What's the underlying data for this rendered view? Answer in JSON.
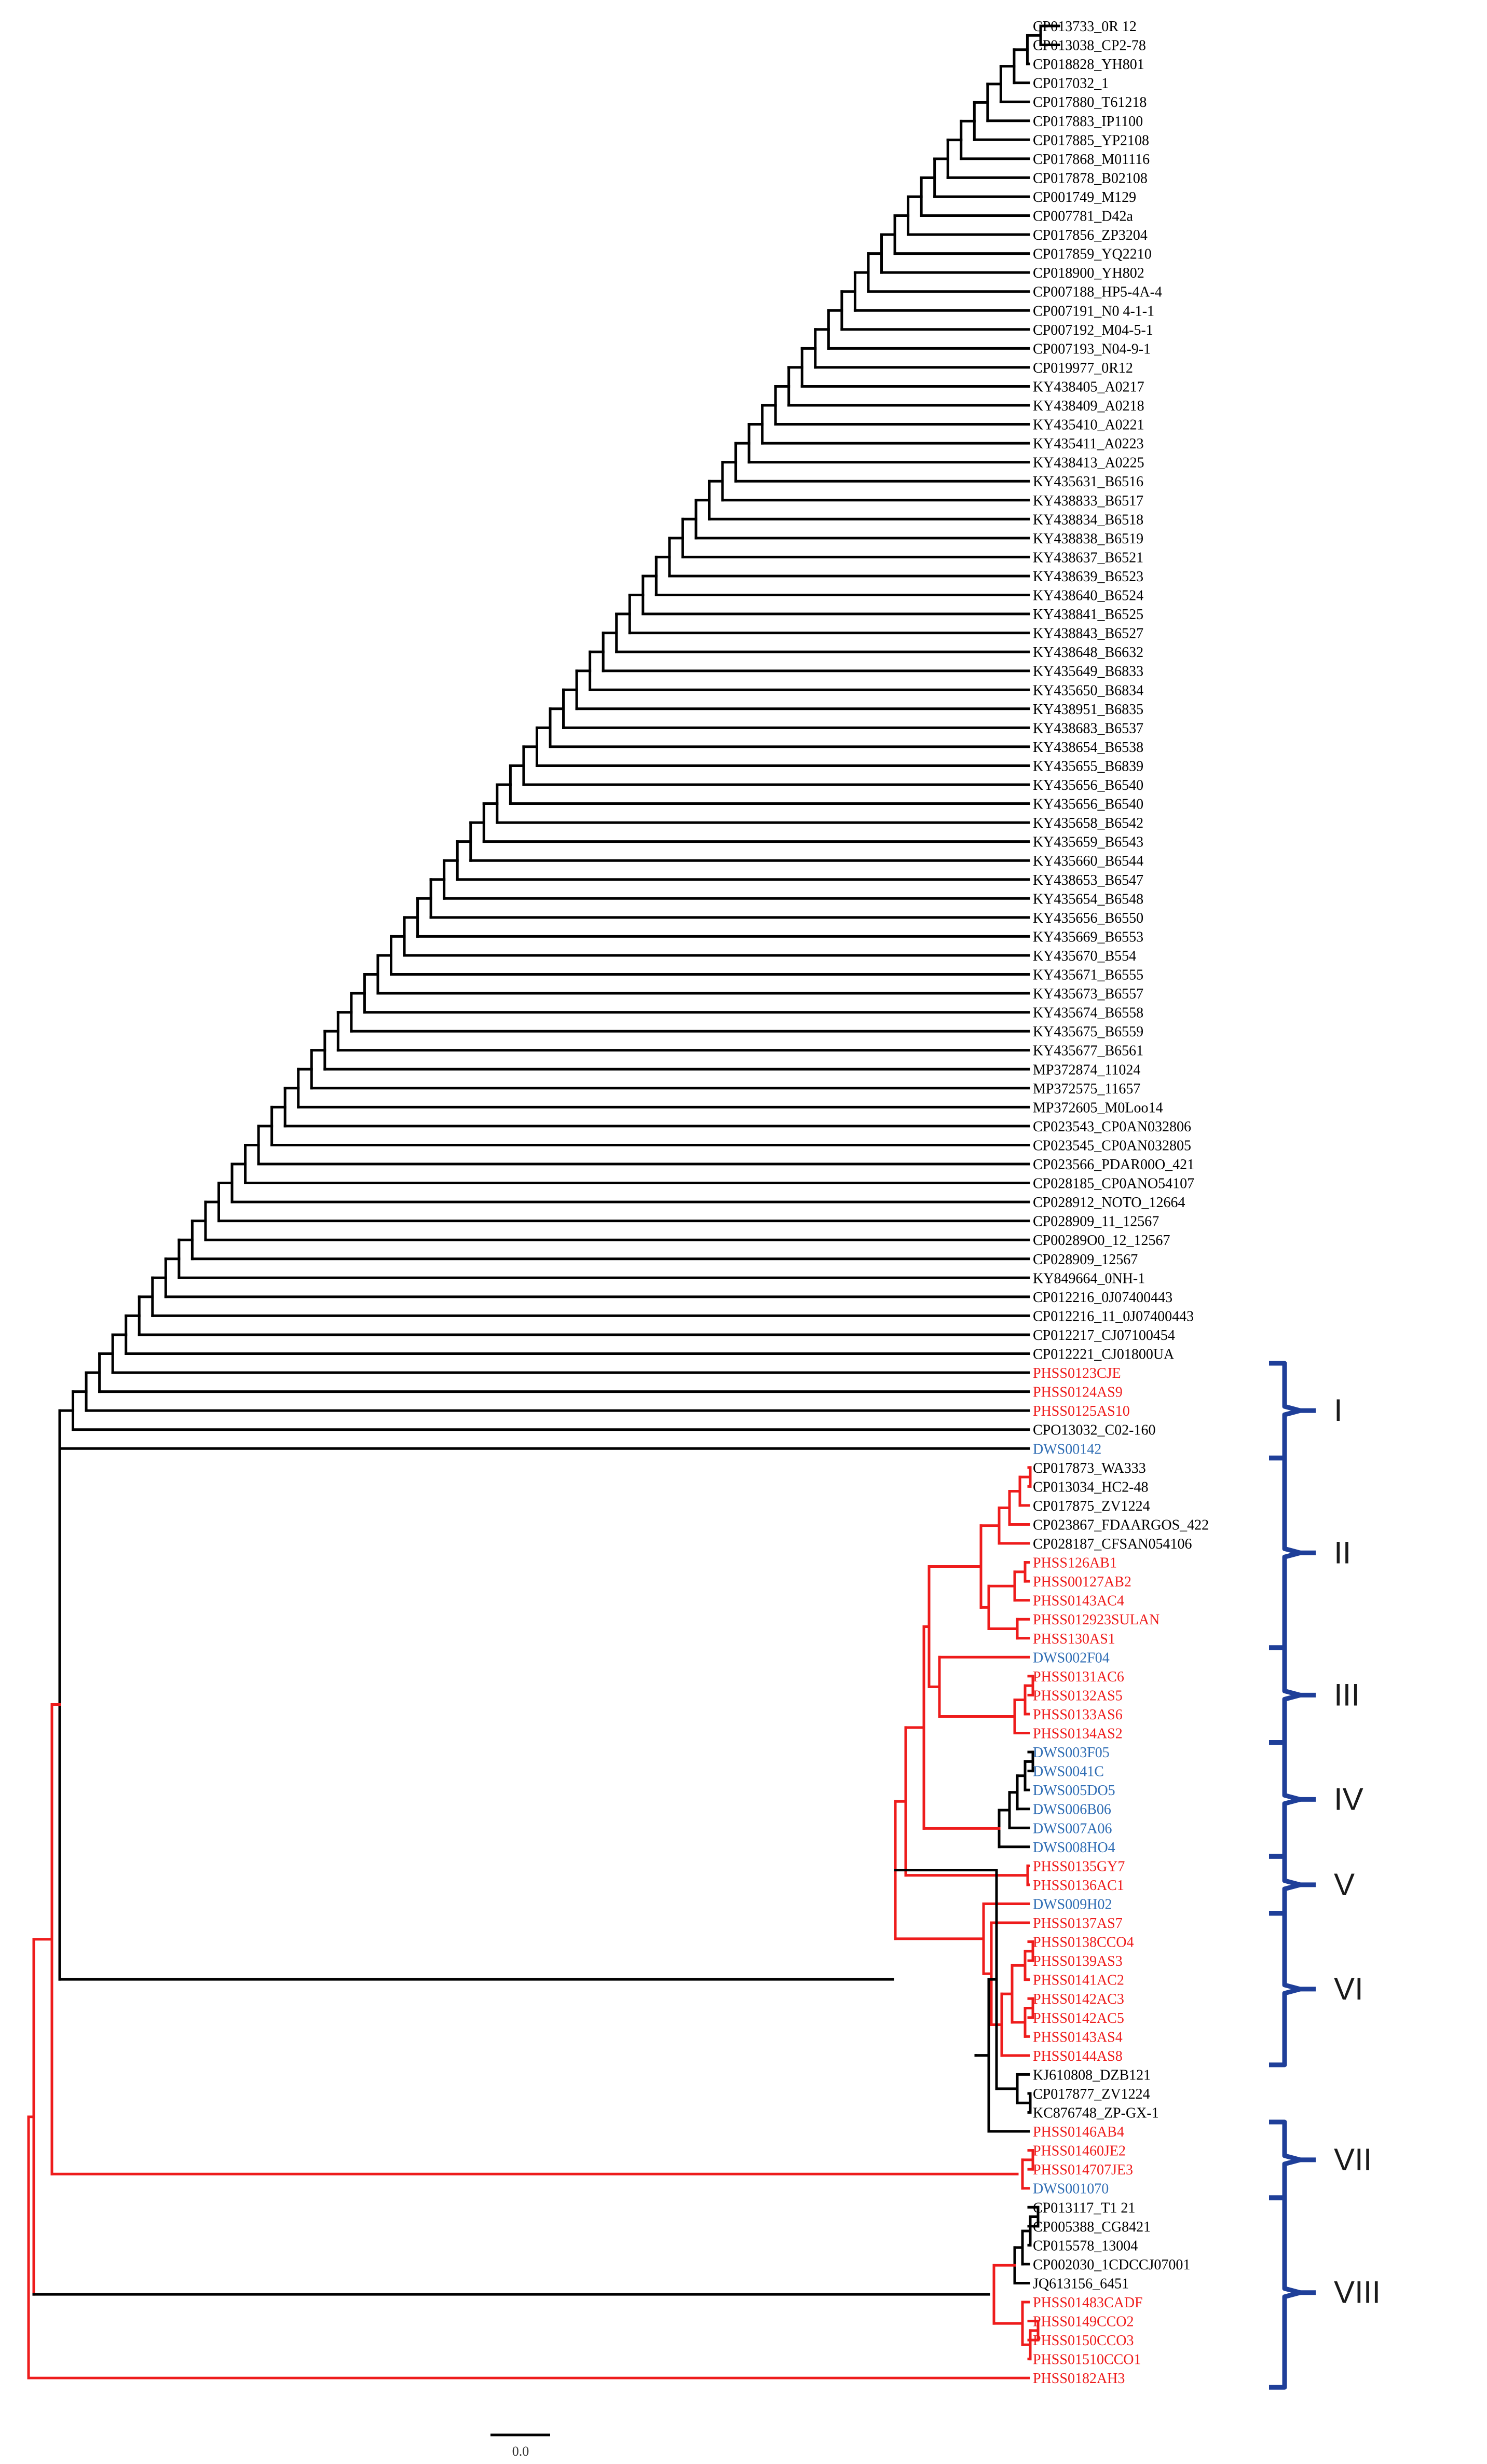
{
  "colors": {
    "black": "#000000",
    "red": "#ee1c1c",
    "blue": "#2f6db4",
    "bracket": "#1f3f99"
  },
  "tips": [
    {
      "label": "CP013733_0R 12",
      "c": "k"
    },
    {
      "label": "CP013038_CP2-78",
      "c": "k"
    },
    {
      "label": "CP018828_YH801",
      "c": "k"
    },
    {
      "label": "CP017032_1",
      "c": "k"
    },
    {
      "label": "CP017880_T61218",
      "c": "k"
    },
    {
      "label": "CP017883_IP1100",
      "c": "k"
    },
    {
      "label": "CP017885_YP2108",
      "c": "k"
    },
    {
      "label": "CP017868_M01116",
      "c": "k"
    },
    {
      "label": "CP017878_B02108",
      "c": "k"
    },
    {
      "label": "CP001749_M129",
      "c": "k"
    },
    {
      "label": "CP007781_D42a",
      "c": "k"
    },
    {
      "label": "CP017856_ZP3204",
      "c": "k"
    },
    {
      "label": "CP017859_YQ2210",
      "c": "k"
    },
    {
      "label": "CP018900_YH802",
      "c": "k"
    },
    {
      "label": "CP007188_HP5-4A-4",
      "c": "k"
    },
    {
      "label": "CP007191_N0 4-1-1",
      "c": "k"
    },
    {
      "label": "CP007192_M04-5-1",
      "c": "k"
    },
    {
      "label": "CP007193_N04-9-1",
      "c": "k"
    },
    {
      "label": "CP019977_0R12",
      "c": "k"
    },
    {
      "label": "KY438405_A0217",
      "c": "k"
    },
    {
      "label": "KY438409_A0218",
      "c": "k"
    },
    {
      "label": "KY435410_A0221",
      "c": "k"
    },
    {
      "label": "KY435411_A0223",
      "c": "k"
    },
    {
      "label": "KY438413_A0225",
      "c": "k"
    },
    {
      "label": "KY435631_B6516",
      "c": "k"
    },
    {
      "label": "KY438833_B6517",
      "c": "k"
    },
    {
      "label": "KY438834_B6518",
      "c": "k"
    },
    {
      "label": "KY438838_B6519",
      "c": "k"
    },
    {
      "label": "KY438637_B6521",
      "c": "k"
    },
    {
      "label": "KY438639_B6523",
      "c": "k"
    },
    {
      "label": "KY438640_B6524",
      "c": "k"
    },
    {
      "label": "KY438841_B6525",
      "c": "k"
    },
    {
      "label": "KY438843_B6527",
      "c": "k"
    },
    {
      "label": "KY438648_B6632",
      "c": "k"
    },
    {
      "label": "KY435649_B6833",
      "c": "k"
    },
    {
      "label": "KY435650_B6834",
      "c": "k"
    },
    {
      "label": "KY438951_B6835",
      "c": "k"
    },
    {
      "label": "KY438683_B6537",
      "c": "k"
    },
    {
      "label": "KY438654_B6538",
      "c": "k"
    },
    {
      "label": "KY435655_B6839",
      "c": "k"
    },
    {
      "label": "KY435656_B6540",
      "c": "k"
    },
    {
      "label": "KY435656_B6540",
      "c": "k"
    },
    {
      "label": "KY435658_B6542",
      "c": "k"
    },
    {
      "label": "KY435659_B6543",
      "c": "k"
    },
    {
      "label": "KY435660_B6544",
      "c": "k"
    },
    {
      "label": "KY438653_B6547",
      "c": "k"
    },
    {
      "label": "KY435654_B6548",
      "c": "k"
    },
    {
      "label": "KY435656_B6550",
      "c": "k"
    },
    {
      "label": "KY435669_B6553",
      "c": "k"
    },
    {
      "label": "KY435670_B554",
      "c": "k"
    },
    {
      "label": "KY435671_B6555",
      "c": "k"
    },
    {
      "label": "KY435673_B6557",
      "c": "k"
    },
    {
      "label": "KY435674_B6558",
      "c": "k"
    },
    {
      "label": "KY435675_B6559",
      "c": "k"
    },
    {
      "label": "KY435677_B6561",
      "c": "k"
    },
    {
      "label": "MP372874_11024",
      "c": "k"
    },
    {
      "label": "MP372575_11657",
      "c": "k"
    },
    {
      "label": "MP372605_M0Loo14",
      "c": "k"
    },
    {
      "label": "CP023543_CP0AN032806",
      "c": "k"
    },
    {
      "label": "CP023545_CP0AN032805",
      "c": "k"
    },
    {
      "label": "CP023566_PDAR00O_421",
      "c": "k"
    },
    {
      "label": "CP028185_CP0ANO54107",
      "c": "k"
    },
    {
      "label": "CP028912_NOTO_12664",
      "c": "k"
    },
    {
      "label": "CP028909_11_12567",
      "c": "k"
    },
    {
      "label": "CP00289O0_12_12567",
      "c": "k"
    },
    {
      "label": "CP028909_12567",
      "c": "k"
    },
    {
      "label": "KY849664_0NH-1",
      "c": "k"
    },
    {
      "label": "CP012216_0J07400443",
      "c": "k"
    },
    {
      "label": "CP012216_11_0J07400443",
      "c": "k"
    },
    {
      "label": "CP012217_CJ07100454",
      "c": "k"
    },
    {
      "label": "CP012221_CJ01800UA",
      "c": "k"
    },
    {
      "label": "PHSS0123CJE",
      "c": "r"
    },
    {
      "label": "PHSS0124AS9",
      "c": "r"
    },
    {
      "label": "PHSS0125AS10",
      "c": "r"
    },
    {
      "label": "CPO13032_C02-160",
      "c": "k"
    },
    {
      "label": "DWS00142",
      "c": "b"
    },
    {
      "label": "CP017873_WA333",
      "c": "k"
    },
    {
      "label": "CP013034_HC2-48",
      "c": "k"
    },
    {
      "label": "CP017875_ZV1224",
      "c": "k"
    },
    {
      "label": "CP023867_FDAARGOS_422",
      "c": "k"
    },
    {
      "label": "CP028187_CFSAN054106",
      "c": "k"
    },
    {
      "label": "PHSS126AB1",
      "c": "r"
    },
    {
      "label": "PHSS00127AB2",
      "c": "r"
    },
    {
      "label": "PHSS0143AC4",
      "c": "r"
    },
    {
      "label": "PHSS012923SULAN",
      "c": "r"
    },
    {
      "label": "PHSS130AS1",
      "c": "r"
    },
    {
      "label": "DWS002F04",
      "c": "b"
    },
    {
      "label": "PHSS0131AC6",
      "c": "r"
    },
    {
      "label": "PHSS0132AS5",
      "c": "r"
    },
    {
      "label": "PHSS0133AS6",
      "c": "r"
    },
    {
      "label": "PHSS0134AS2",
      "c": "r"
    },
    {
      "label": "DWS003F05",
      "c": "b"
    },
    {
      "label": "DWS0041C",
      "c": "b"
    },
    {
      "label": "DWS005DO5",
      "c": "b"
    },
    {
      "label": "DWS006B06",
      "c": "b"
    },
    {
      "label": "DWS007A06",
      "c": "b"
    },
    {
      "label": "DWS008HO4",
      "c": "b"
    },
    {
      "label": "PHSS0135GY7",
      "c": "r"
    },
    {
      "label": "PHSS0136AC1",
      "c": "r"
    },
    {
      "label": "DWS009H02",
      "c": "b"
    },
    {
      "label": "PHSS0137AS7",
      "c": "r"
    },
    {
      "label": "PHSS0138CCO4",
      "c": "r"
    },
    {
      "label": "PHSS0139AS3",
      "c": "r"
    },
    {
      "label": "PHSS0141AC2",
      "c": "r"
    },
    {
      "label": "PHSS0142AC3",
      "c": "r"
    },
    {
      "label": "PHSS0142AC5",
      "c": "r"
    },
    {
      "label": "PHSS0143AS4",
      "c": "r"
    },
    {
      "label": "PHSS0144AS8",
      "c": "r"
    },
    {
      "label": "KJ610808_DZB121",
      "c": "k"
    },
    {
      "label": "CP017877_ZV1224",
      "c": "k"
    },
    {
      "label": "KC876748_ZP-GX-1",
      "c": "k"
    },
    {
      "label": "PHSS0146AB4",
      "c": "r"
    },
    {
      "label": "PHSS01460JE2",
      "c": "r"
    },
    {
      "label": "PHSS014707JE3",
      "c": "r"
    },
    {
      "label": "DWS001070",
      "c": "b"
    },
    {
      "label": "CP013117_T1 21",
      "c": "k"
    },
    {
      "label": "CP005388_CG8421",
      "c": "k"
    },
    {
      "label": "CP015578_13004",
      "c": "k"
    },
    {
      "label": "CP002030_1CDCCJ07001",
      "c": "k"
    },
    {
      "label": "JQ613156_6451",
      "c": "k"
    },
    {
      "label": "PHSS01483CADF",
      "c": "r"
    },
    {
      "label": "PHSS0149CCO2",
      "c": "r"
    },
    {
      "label": "PHSS0150CCO3",
      "c": "r"
    },
    {
      "label": "PHSS01510CCO1",
      "c": "r"
    },
    {
      "label": "PHSS0182AH3",
      "c": "r"
    }
  ],
  "clades": [
    {
      "label": "I",
      "from": 71,
      "to": 75
    },
    {
      "label": "II",
      "from": 76,
      "to": 85
    },
    {
      "label": "III",
      "from": 86,
      "to": 90
    },
    {
      "label": "IV",
      "from": 91,
      "to": 96
    },
    {
      "label": "V",
      "from": 97,
      "to": 99
    },
    {
      "label": "VI",
      "from": 100,
      "to": 107
    },
    {
      "label": "VII",
      "from": 111,
      "to": 114
    },
    {
      "label": "VIII",
      "from": 115,
      "to": 124
    }
  ],
  "scale_bar": {
    "label": "0.0"
  }
}
